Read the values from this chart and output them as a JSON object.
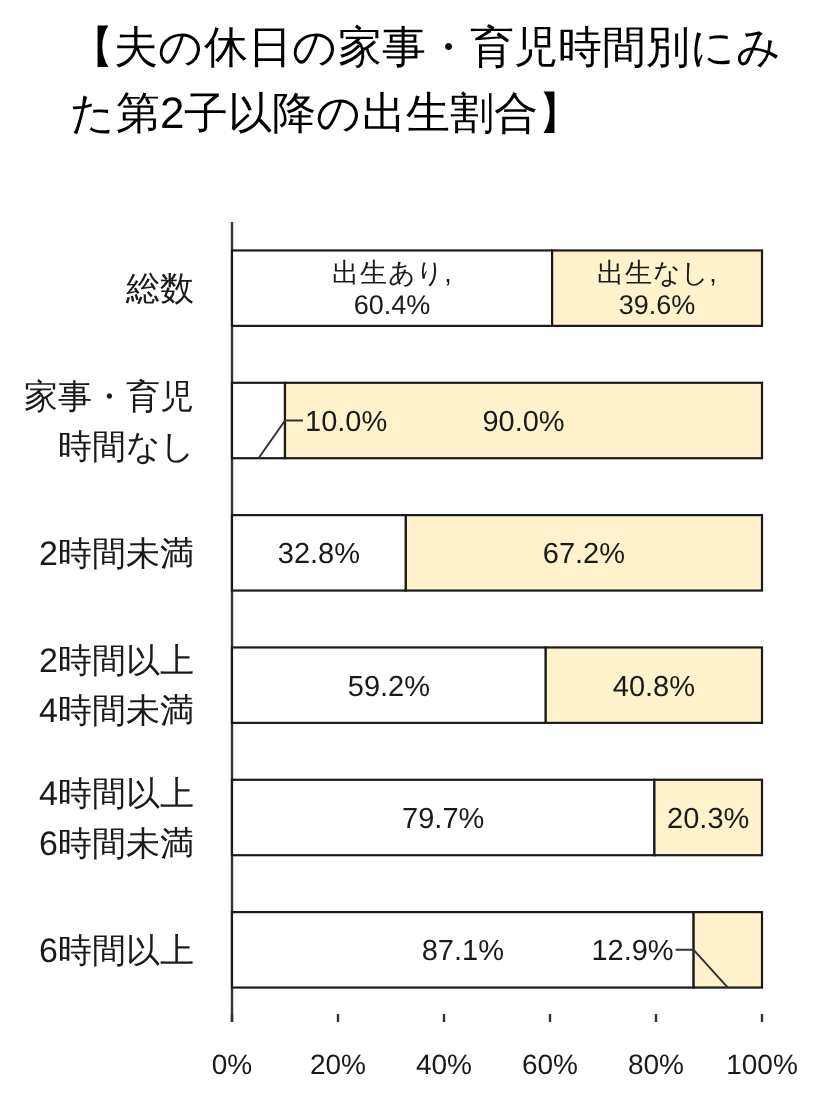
{
  "chart_data": {
    "type": "bar",
    "orientation": "horizontal",
    "stacked": true,
    "title": "【夫の休日の家事・育児時間別にみた第2子以降の出生割合】",
    "categories": [
      "総数",
      "家事・育児時間なし",
      "2時間未満",
      "2時間以上4時間未満",
      "4時間以上6時間未満",
      "6時間以上"
    ],
    "series": [
      {
        "color": "#ffffff",
        "values": [
          60.4,
          10.0,
          32.8,
          59.2,
          79.7,
          87.1
        ],
        "value_labels": [
          "出生あり,\n60.4%",
          "10.0%",
          "32.8%",
          "59.2%",
          "79.7%",
          "87.1%"
        ]
      },
      {
        "color": "#fff2cc",
        "values": [
          39.6,
          90.0,
          67.2,
          40.8,
          20.3,
          12.9
        ],
        "value_labels": [
          "出生なし,\n39.6%",
          "90.0%",
          "67.2%",
          "40.8%",
          "20.3%",
          "12.9%"
        ]
      }
    ],
    "xlim": [
      0,
      100
    ],
    "xticks": [
      {
        "value": 0,
        "label": "0%"
      },
      {
        "value": 20,
        "label": "20%"
      },
      {
        "value": 40,
        "label": "40%"
      },
      {
        "value": 60,
        "label": "60%"
      },
      {
        "value": 80,
        "label": "80%"
      },
      {
        "value": 100,
        "label": "100%"
      }
    ],
    "grid": false
  }
}
